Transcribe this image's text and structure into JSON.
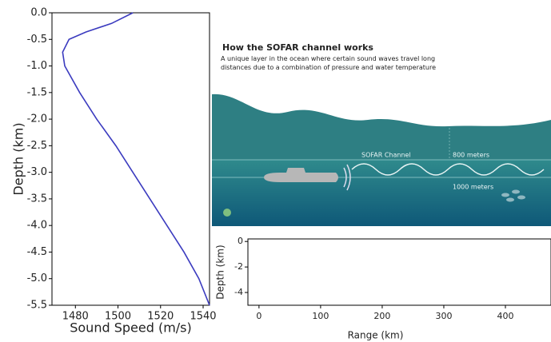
{
  "chart_data": [
    {
      "type": "line",
      "xlabel": "Sound Speed (m/s)",
      "ylabel": "Depth (km)",
      "x": [
        1507,
        1497,
        1485,
        1477,
        1474,
        1475,
        1482,
        1490,
        1499,
        1507,
        1515,
        1523,
        1531,
        1538,
        1543
      ],
      "series": [
        {
          "color": "#3b3bbf",
          "values": [
            0,
            -0.2,
            -0.36,
            -0.5,
            -0.74,
            -1.0,
            -1.5,
            -2.0,
            -2.5,
            -3.0,
            -3.5,
            -4.0,
            -4.5,
            -5.0,
            -5.5
          ]
        }
      ],
      "xlim": [
        1469,
        1543
      ],
      "ylim": [
        -5.5,
        0
      ],
      "xticks": [
        1480,
        1500,
        1520,
        1540
      ],
      "yticks": [
        {
          "value": 0,
          "label": "0.0"
        },
        -0.5,
        {
          "value": -1,
          "label": "-1.0"
        },
        -1.5,
        {
          "value": -2,
          "label": "-2.0"
        },
        -2.5,
        {
          "value": -3,
          "label": "-3.0"
        },
        -3.5,
        {
          "value": -4,
          "label": "-4.0"
        },
        -4.5,
        {
          "value": -5,
          "label": "-5.0"
        },
        -5.5
      ]
    },
    {
      "type": "line",
      "xlabel": "Range (km)",
      "ylabel": "Depth (km)",
      "xlim": [
        -18,
        474
      ],
      "ylim": [
        -5,
        0.2
      ],
      "xticks": [
        0,
        100,
        200,
        300,
        400
      ],
      "yticks": [
        0,
        -2,
        -4
      ]
    }
  ],
  "illustration": {
    "title": "How the SOFAR channel works",
    "subtitle": "A unique layer in the ocean where certain sound waves travel long distances due to a combination of pressure and water temperature",
    "channel_label": "SOFAR Channel",
    "depth_800": "800 meters",
    "depth_1000": "1000 meters"
  }
}
